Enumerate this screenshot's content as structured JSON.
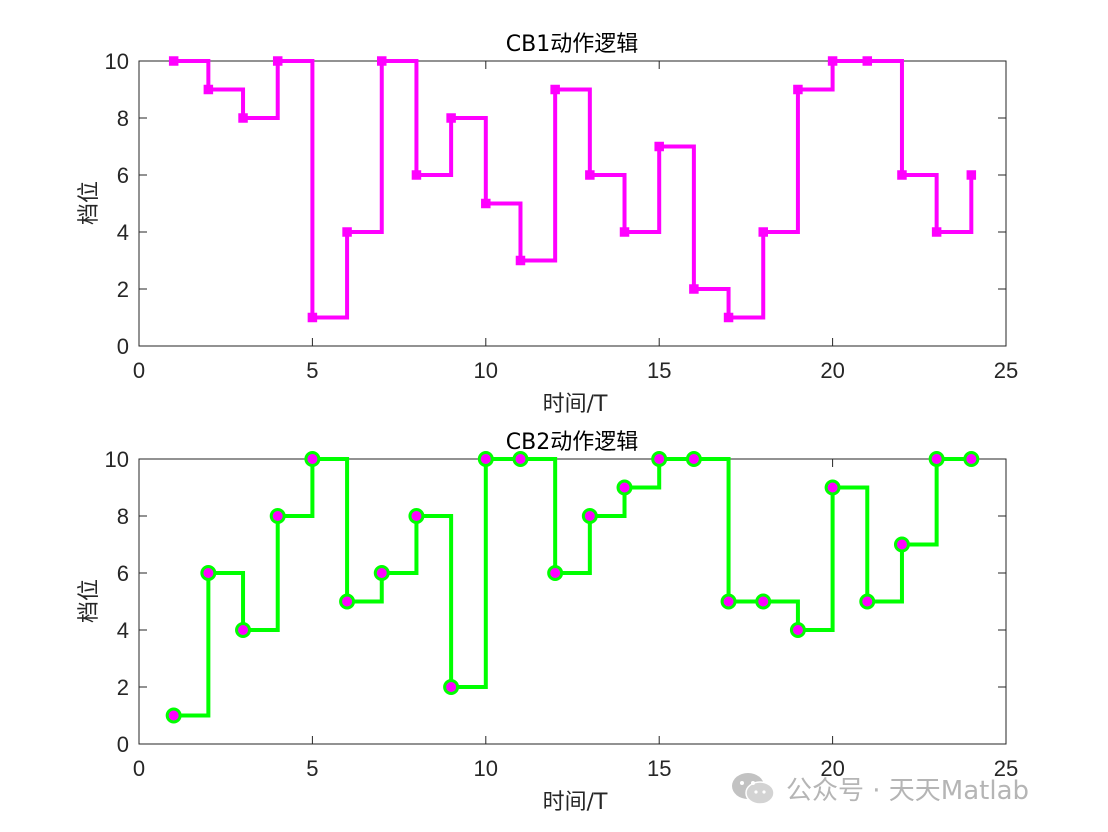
{
  "chart_data": [
    {
      "type": "line",
      "step": "post",
      "title": "CB1动作逻辑",
      "xlabel": "时间/T",
      "ylabel": "档位",
      "xlim": [
        0,
        25
      ],
      "ylim": [
        0,
        10
      ],
      "xticks": [
        0,
        5,
        10,
        15,
        20,
        25
      ],
      "yticks": [
        0,
        2,
        4,
        6,
        8,
        10
      ],
      "grid": false,
      "line_color": "#ff00ff",
      "marker": "square",
      "marker_face": "#ff00ff",
      "marker_edge": "#ff00ff",
      "x": [
        1,
        2,
        3,
        4,
        5,
        6,
        7,
        8,
        9,
        10,
        11,
        12,
        13,
        14,
        15,
        16,
        17,
        18,
        19,
        20,
        21,
        22,
        23,
        24
      ],
      "y": [
        10,
        9,
        8,
        10,
        1,
        4,
        10,
        6,
        8,
        5,
        3,
        9,
        6,
        4,
        7,
        2,
        1,
        4,
        9,
        10,
        10,
        6,
        4,
        6
      ]
    },
    {
      "type": "line",
      "step": "post",
      "title": "CB2动作逻辑",
      "xlabel": "时间/T",
      "ylabel": "档位",
      "xlim": [
        0,
        25
      ],
      "ylim": [
        0,
        10
      ],
      "xticks": [
        0,
        5,
        10,
        15,
        20,
        25
      ],
      "yticks": [
        0,
        2,
        4,
        6,
        8,
        10
      ],
      "grid": false,
      "line_color": "#00ff00",
      "marker": "circle",
      "marker_face": "#ff00ff",
      "marker_edge": "#00ff00",
      "x": [
        1,
        2,
        3,
        4,
        5,
        6,
        7,
        8,
        9,
        10,
        11,
        12,
        13,
        14,
        15,
        16,
        17,
        18,
        19,
        20,
        21,
        22,
        23,
        24
      ],
      "y": [
        1,
        6,
        4,
        8,
        10,
        5,
        6,
        8,
        2,
        10,
        10,
        6,
        8,
        9,
        10,
        10,
        5,
        5,
        4,
        9,
        5,
        7,
        10,
        10
      ]
    }
  ],
  "watermark": {
    "text": "公众号 · 天天Matlab",
    "icon": "wechat-icon",
    "color": "#b5b5b5"
  }
}
